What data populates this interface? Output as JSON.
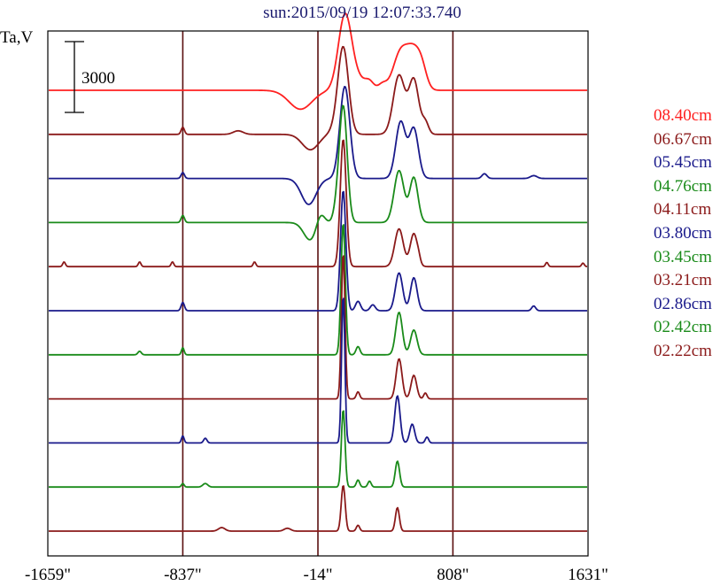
{
  "chart_data": {
    "type": "line",
    "title": "sun:2015/09/19 12:07:33.740",
    "ylabel": "Ta,V",
    "scale_bar_label": "3000",
    "x_ticks": [
      {
        "value": -1659,
        "label": "-1659\""
      },
      {
        "value": -837,
        "label": "-837\""
      },
      {
        "value": -14,
        "label": "-14\""
      },
      {
        "value": 808,
        "label": "808\""
      },
      {
        "value": 1631,
        "label": "1631\""
      }
    ],
    "xlim": [
      -1659,
      1631
    ],
    "vertical_markers": [
      -837,
      -14,
      808
    ],
    "colors": {
      "red": "#ff2020",
      "maroon": "#8b1a1a",
      "navy": "#1a1a8b",
      "green": "#1a8b1a",
      "axis": "#000000",
      "marker": "#5a1010",
      "title": "#1a1a6e"
    },
    "series": [
      {
        "name": "08.40cm",
        "color": "#ff2020",
        "features": [
          [
            -120,
            -800,
            70
          ],
          [
            150,
            3000,
            40
          ],
          [
            220,
            500,
            60
          ],
          [
            300,
            250,
            25
          ],
          [
            380,
            250,
            25
          ],
          [
            490,
            1600,
            45
          ],
          [
            570,
            1450,
            40
          ],
          [
            620,
            700,
            30
          ]
        ]
      },
      {
        "name": "06.67cm",
        "color": "#8b1a1a",
        "features": [
          [
            -60,
            -650,
            50
          ],
          [
            140,
            3600,
            32
          ],
          [
            480,
            2500,
            35
          ],
          [
            570,
            2300,
            30
          ],
          [
            640,
            500,
            20
          ],
          [
            -837,
            300,
            10
          ],
          [
            -500,
            150,
            30
          ],
          [
            100,
            200,
            40
          ]
        ]
      },
      {
        "name": "05.45cm",
        "color": "#1a1a8b",
        "features": [
          [
            -70,
            -1100,
            45
          ],
          [
            150,
            3900,
            30
          ],
          [
            490,
            2400,
            30
          ],
          [
            570,
            2100,
            28
          ],
          [
            -837,
            250,
            10
          ],
          [
            1000,
            200,
            15
          ],
          [
            1300,
            120,
            20
          ]
        ]
      },
      {
        "name": "04.76cm",
        "color": "#1a8b1a",
        "features": [
          [
            -60,
            -750,
            40
          ],
          [
            140,
            4900,
            24
          ],
          [
            480,
            2200,
            30
          ],
          [
            570,
            1900,
            25
          ],
          [
            0,
            500,
            25
          ],
          [
            100,
            500,
            20
          ],
          [
            -837,
            300,
            10
          ]
        ]
      },
      {
        "name": "04.11cm",
        "color": "#8b1a1a",
        "features": [
          [
            140,
            5400,
            18
          ],
          [
            480,
            1600,
            26
          ],
          [
            570,
            1400,
            22
          ],
          [
            -1560,
            200,
            8
          ],
          [
            -1100,
            200,
            8
          ],
          [
            -900,
            200,
            8
          ],
          [
            -400,
            200,
            8
          ],
          [
            600,
            150,
            10
          ],
          [
            1600,
            150,
            8
          ],
          [
            1380,
            180,
            8
          ]
        ]
      },
      {
        "name": "03.80cm",
        "color": "#1a1a8b",
        "features": [
          [
            140,
            5100,
            16
          ],
          [
            480,
            1600,
            22
          ],
          [
            570,
            1400,
            20
          ],
          [
            230,
            400,
            15
          ],
          [
            320,
            250,
            15
          ],
          [
            -837,
            350,
            10
          ],
          [
            1300,
            200,
            12
          ]
        ]
      },
      {
        "name": "03.45cm",
        "color": "#1a8b1a",
        "features": [
          [
            140,
            5600,
            13
          ],
          [
            480,
            1800,
            20
          ],
          [
            570,
            1050,
            20
          ],
          [
            -837,
            300,
            8
          ],
          [
            230,
            350,
            12
          ],
          [
            -1100,
            150,
            10
          ]
        ]
      },
      {
        "name": "03.21cm",
        "color": "#8b1a1a",
        "features": [
          [
            140,
            6200,
            11
          ],
          [
            480,
            1700,
            18
          ],
          [
            570,
            1000,
            17
          ],
          [
            230,
            300,
            10
          ],
          [
            640,
            250,
            10
          ]
        ]
      },
      {
        "name": "02.86cm",
        "color": "#1a1a8b",
        "features": [
          [
            140,
            6300,
            10
          ],
          [
            470,
            2000,
            16
          ],
          [
            560,
            800,
            15
          ],
          [
            -837,
            300,
            8
          ],
          [
            -700,
            200,
            10
          ],
          [
            650,
            250,
            10
          ]
        ]
      },
      {
        "name": "02.42cm",
        "color": "#1a8b1a",
        "features": [
          [
            140,
            3300,
            11
          ],
          [
            470,
            1100,
            13
          ],
          [
            230,
            300,
            10
          ],
          [
            300,
            250,
            10
          ],
          [
            -837,
            150,
            8
          ],
          [
            -700,
            150,
            15
          ]
        ]
      },
      {
        "name": "02.22cm",
        "color": "#8b1a1a",
        "features": [
          [
            140,
            1950,
            12
          ],
          [
            470,
            1000,
            12
          ],
          [
            230,
            250,
            10
          ],
          [
            -600,
            150,
            20
          ],
          [
            -200,
            120,
            20
          ]
        ]
      }
    ],
    "grid": false,
    "legend": "right"
  }
}
